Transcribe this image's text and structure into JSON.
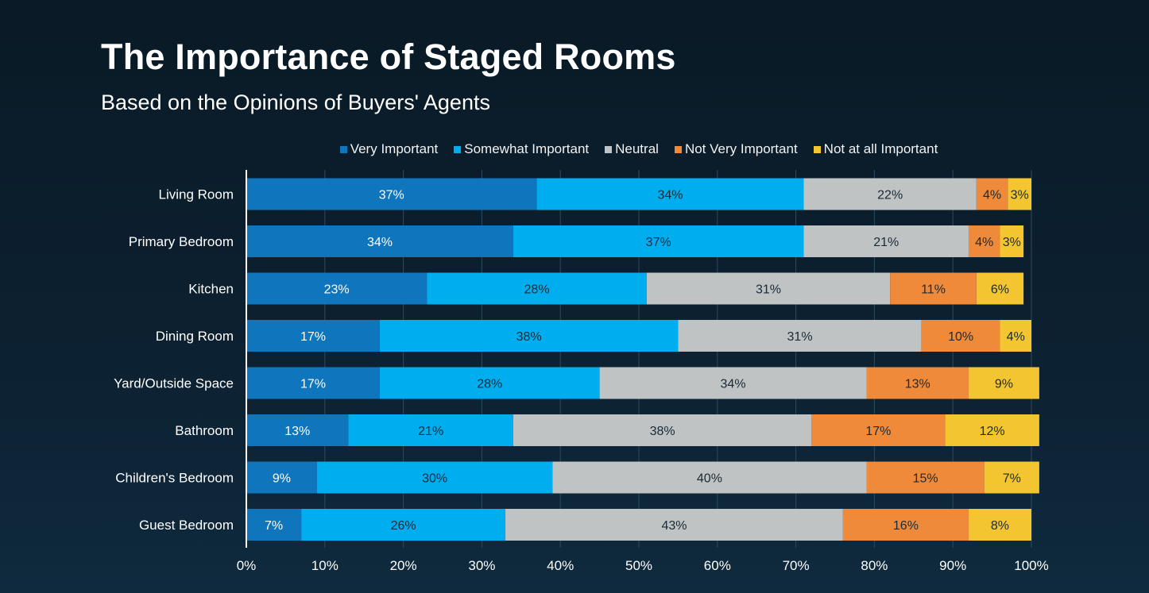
{
  "header": {
    "title": "The Importance of Staged Rooms",
    "subtitle": "Based on the Opinions of Buyers' Agents"
  },
  "chart_data": {
    "type": "bar",
    "orientation": "horizontal",
    "stacked": true,
    "categories": [
      "Living Room",
      "Primary Bedroom",
      "Kitchen",
      "Dining Room",
      "Yard/Outside Space",
      "Bathroom",
      "Children's Bedroom",
      "Guest Bedroom"
    ],
    "series": [
      {
        "name": "Very Important",
        "color": "#0f75bc",
        "label_color": "#ffffff",
        "values": [
          37,
          34,
          23,
          17,
          17,
          13,
          9,
          7
        ]
      },
      {
        "name": "Somewhat Important",
        "color": "#00aeef",
        "label_color": "#1a2a36",
        "values": [
          34,
          37,
          28,
          38,
          28,
          21,
          30,
          26
        ]
      },
      {
        "name": "Neutral",
        "color": "#bfc3c4",
        "label_color": "#1a2a36",
        "values": [
          22,
          21,
          31,
          31,
          34,
          38,
          40,
          43
        ]
      },
      {
        "name": "Not Very Important",
        "color": "#ee8a3a",
        "label_color": "#1a2a36",
        "values": [
          4,
          4,
          11,
          10,
          13,
          17,
          15,
          16
        ]
      },
      {
        "name": "Not at all Important",
        "color": "#f3c531",
        "label_color": "#1a2a36",
        "values": [
          3,
          3,
          6,
          4,
          9,
          12,
          7,
          8
        ]
      }
    ],
    "value_suffix": "%",
    "xlim": [
      0,
      100
    ],
    "xticks": [
      "0%",
      "10%",
      "20%",
      "30%",
      "40%",
      "50%",
      "60%",
      "70%",
      "80%",
      "90%",
      "100%"
    ],
    "grid": true,
    "legend_position": "top"
  }
}
